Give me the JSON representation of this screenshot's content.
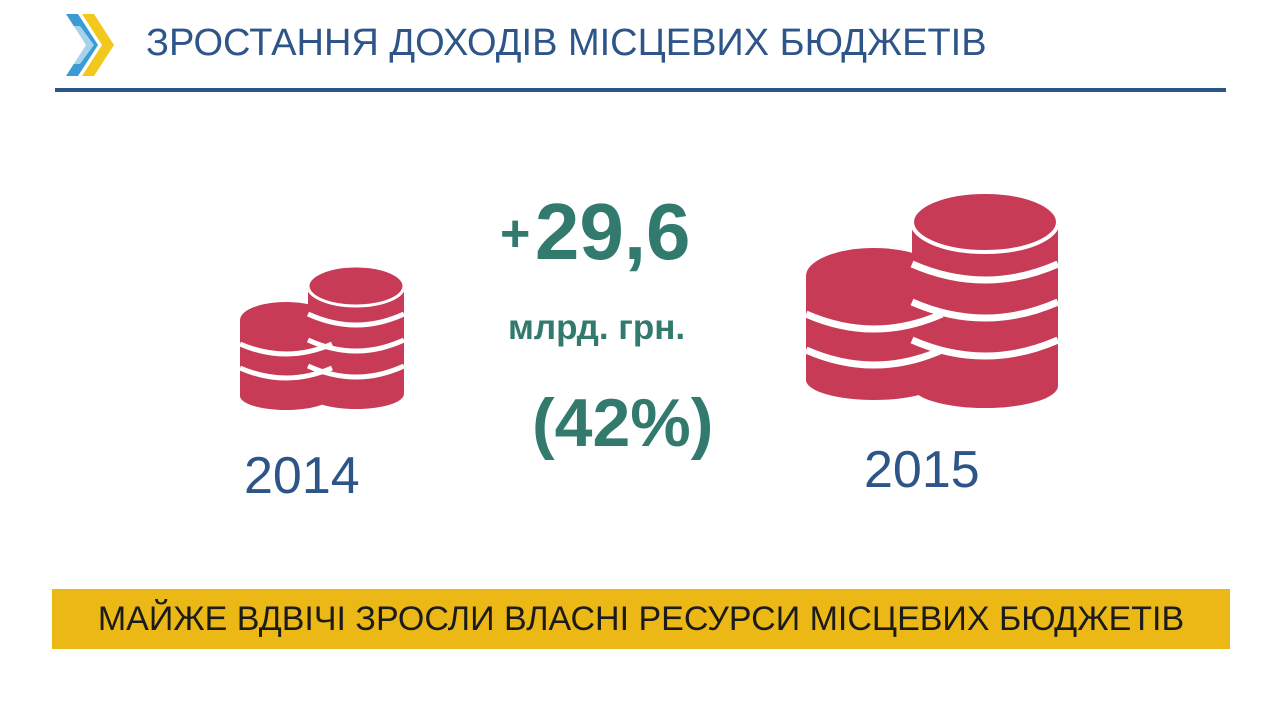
{
  "header": {
    "title": "ЗРОСТАННЯ ДОХОДІВ МІСЦЕВИХ БЮДЖЕТІВ",
    "logo_icon": "chevron-arrows-logo-icon"
  },
  "comparison": {
    "left_year": "2014",
    "right_year": "2015",
    "increase_prefix": "+",
    "increase_value": "29,6",
    "unit": "млрд. грн.",
    "percent": "(42%)"
  },
  "banner": {
    "text": "МАЙЖЕ ВДВІЧІ ЗРОСЛИ ВЛАСНІ РЕСУРСИ МІСЦЕВИХ БЮДЖЕТІВ"
  },
  "colors": {
    "primary_blue": "#2e5588",
    "teal_green": "#327a6e",
    "coin_red": "#c83b57",
    "banner_yellow": "#ecb815"
  }
}
